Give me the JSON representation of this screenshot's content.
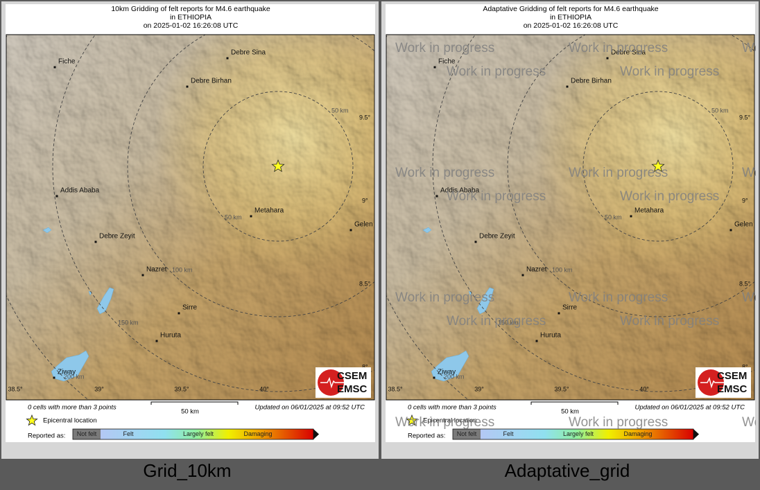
{
  "panels": [
    {
      "title": [
        "10km Gridding of felt reports for M4.6 earthquake",
        "in ETHIOPIA",
        "on  2025-01-02 16:26:08 UTC"
      ],
      "caption": "Grid_10km"
    },
    {
      "title": [
        "Adaptative Gridding of felt reports for M4.6 earthquake",
        "in ETHIOPIA",
        "on  2025-01-02 16:26:08 UTC"
      ],
      "caption": "Adaptative_grid",
      "watermark": "Work in progress"
    }
  ],
  "map": {
    "cities": [
      "Fiche",
      "Debre Sina",
      "Debre Birhan",
      "Addis Ababa",
      "Metahara",
      "Debre Zeyit",
      "Nazret",
      "Sirre",
      "Huruta",
      "Ziway",
      "Gelen"
    ],
    "ring_labels": [
      "50 km",
      "50 km",
      "100 km",
      "150 km",
      "200 km"
    ],
    "lat_labels": [
      "9.5°",
      "9°",
      "8.5°",
      "8°"
    ],
    "lon_labels": [
      "38.5°",
      "39°",
      "39.5°",
      "40°"
    ],
    "logo": [
      "CSEM",
      "EMSC"
    ]
  },
  "footer": {
    "cells_note": "0 cells with more than 3 points",
    "scale": "50 km",
    "updated": "Updated on 06/01/2025 at 09:52 UTC",
    "epicenter": "Epicentral location",
    "reported_as": "Reported as:",
    "levels": [
      "Not felt",
      "Felt",
      "Largely felt",
      "Damaging"
    ]
  }
}
